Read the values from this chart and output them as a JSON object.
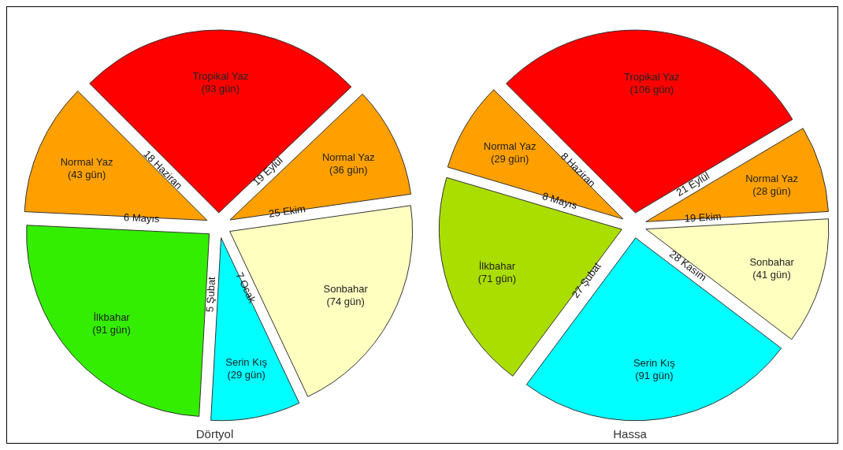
{
  "chart_data": [
    {
      "type": "pie",
      "title": "Dörtyol",
      "categories": [
        "Tropikal Yaz",
        "Normal Yaz",
        "Sonbahar",
        "Serin Kış",
        "İlkbahar",
        "Normal Yaz"
      ],
      "values": [
        93,
        36,
        74,
        29,
        91,
        43
      ],
      "value_labels": [
        "(93 gün)",
        "(36 gün)",
        "(74 gün)",
        "(29 gün)",
        "(91 gün)",
        "(43 gün)"
      ],
      "colors": [
        "#ff0000",
        "#ffa000",
        "#ffffc0",
        "#00ffff",
        "#33ee00",
        "#ffa000"
      ],
      "annotations": [
        "18 Haziran",
        "19 Eylül",
        "25 Ekim",
        "7 Ocak",
        "5 Şubat",
        "6 Mayıs"
      ]
    },
    {
      "type": "pie",
      "title": "Hassa",
      "categories": [
        "Tropikal Yaz",
        "Normal Yaz",
        "Sonbahar",
        "Serin Kış",
        "İlkbahar",
        "Normal Yaz"
      ],
      "values": [
        106,
        28,
        41,
        91,
        71,
        29
      ],
      "value_labels": [
        "(106 gün)",
        "(28 gün)",
        "(41 gün)",
        "(91 gün)",
        "(71 gün)",
        "(29 gün)"
      ],
      "colors": [
        "#ff0000",
        "#ffa000",
        "#ffffc0",
        "#00ffff",
        "#aadd00",
        "#ffa000"
      ],
      "annotations": [
        "8 Haziran",
        "21 Eylül",
        "19 Ekim",
        "28 Kasım",
        "27 Şubat",
        "8 Mayıs"
      ]
    }
  ]
}
